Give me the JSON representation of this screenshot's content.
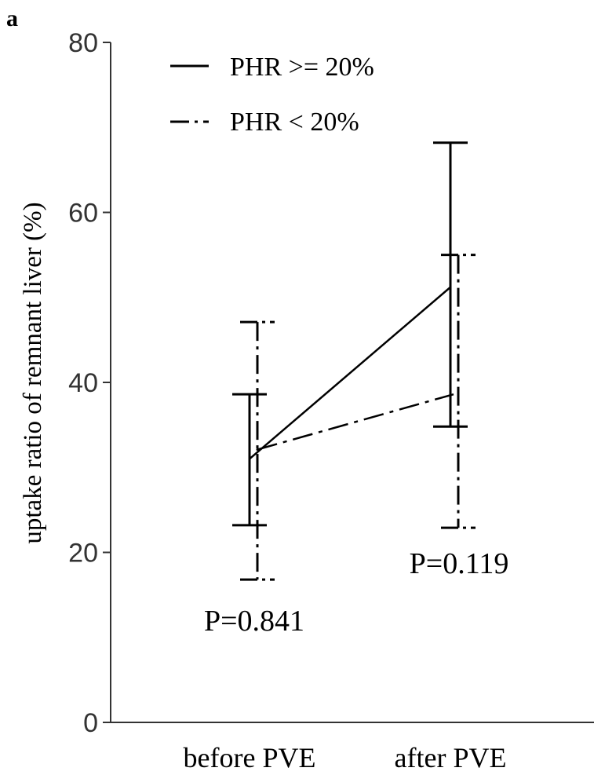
{
  "chart_data": {
    "type": "line",
    "panel_label": "a",
    "title": "",
    "xlabel": "",
    "ylabel": "uptake ratio of remnant liver (%)",
    "categories": [
      "before PVE",
      "after PVE"
    ],
    "ylim": [
      0,
      80
    ],
    "yticks": [
      0,
      20,
      40,
      60,
      80
    ],
    "grid": false,
    "legend_position": "top-left",
    "series": [
      {
        "name": "PHR >= 20%",
        "line_style": "solid",
        "values": [
          31,
          51.2
        ],
        "error_low": [
          23.2,
          34.8
        ],
        "error_high": [
          38.6,
          68.2
        ]
      },
      {
        "name": "PHR < 20%",
        "line_style": "dash-dot",
        "values": [
          32.1,
          38.6
        ],
        "error_low": [
          16.8,
          22.9
        ],
        "error_high": [
          47.1,
          55
        ]
      }
    ],
    "annotations": [
      {
        "text": "P=0.841",
        "category": "before PVE"
      },
      {
        "text": "P=0.119",
        "category": "after PVE"
      }
    ],
    "colors": {
      "ink": "#000000",
      "axis": "#333333",
      "background": "#ffffff"
    }
  }
}
